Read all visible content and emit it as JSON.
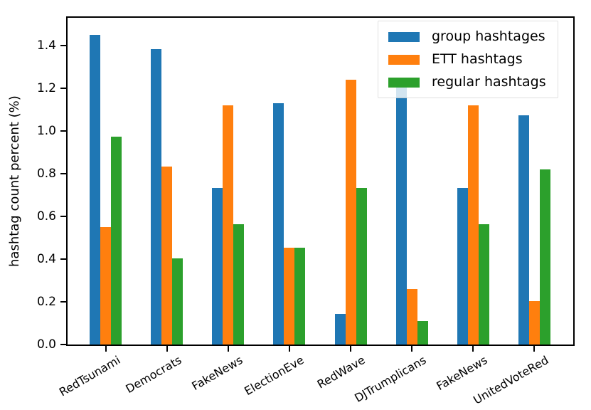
{
  "chart_data": {
    "type": "bar",
    "title": "",
    "xlabel": "",
    "ylabel": "hashtag count percent (%)",
    "categories": [
      "RedTsunami",
      "Democrats",
      "FakeNews",
      "ElectionEve",
      "RedWave",
      "DJTrumplicans",
      "FakeNews",
      "UnitedVoteRed"
    ],
    "series": [
      {
        "name": "group hashtages",
        "color": "#1f77b4",
        "values": [
          1.45,
          1.385,
          0.735,
          1.13,
          0.145,
          1.205,
          0.735,
          1.075
        ]
      },
      {
        "name": "ETT hashtags",
        "color": "#ff7f0e",
        "values": [
          0.55,
          0.835,
          1.12,
          0.455,
          1.24,
          0.26,
          1.12,
          0.205
        ]
      },
      {
        "name": "regular hashtags",
        "color": "#2ca02c",
        "values": [
          0.975,
          0.405,
          0.565,
          0.455,
          0.735,
          0.11,
          0.565,
          0.82
        ]
      }
    ],
    "yticks": [
      "0.0",
      "0.2",
      "0.4",
      "0.6",
      "0.8",
      "1.0",
      "1.2",
      "1.4"
    ],
    "ylim": [
      0,
      1.53
    ],
    "grid": false,
    "legend_position": "upper right",
    "axis_color": "#000000",
    "background_color": "#ffffff"
  }
}
